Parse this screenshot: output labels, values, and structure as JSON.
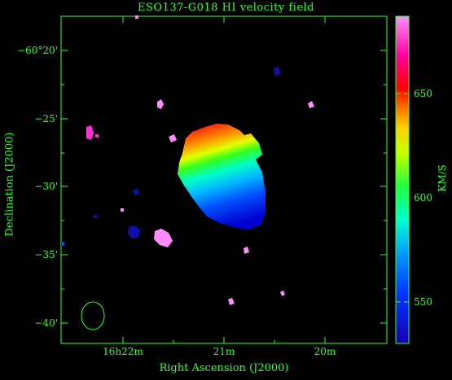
{
  "plot": {
    "title": "ESO137-G018  HI velocity field",
    "xlabel": "Right Ascension (J2000)",
    "ylabel": "Declination (J2000)",
    "colorbar_unit": "KM/S",
    "y_ticks": [
      "−60°20'",
      "−25'",
      "−30'",
      "−35'",
      "−40'"
    ],
    "x_ticks": [
      "16h22m",
      "21m",
      "20m"
    ],
    "colorbar_ticks": [
      "650",
      "600",
      "550"
    ]
  },
  "colors": {
    "axes": "#33ff33",
    "background": "#000000"
  }
}
